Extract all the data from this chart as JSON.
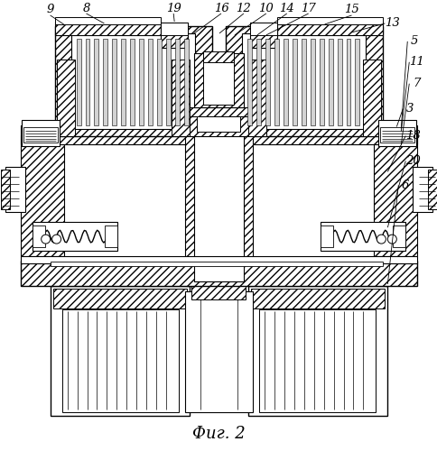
{
  "title": "Фиг. 2",
  "title_fontsize": 13,
  "background_color": "#ffffff",
  "fig_width": 4.85,
  "fig_height": 5.0
}
